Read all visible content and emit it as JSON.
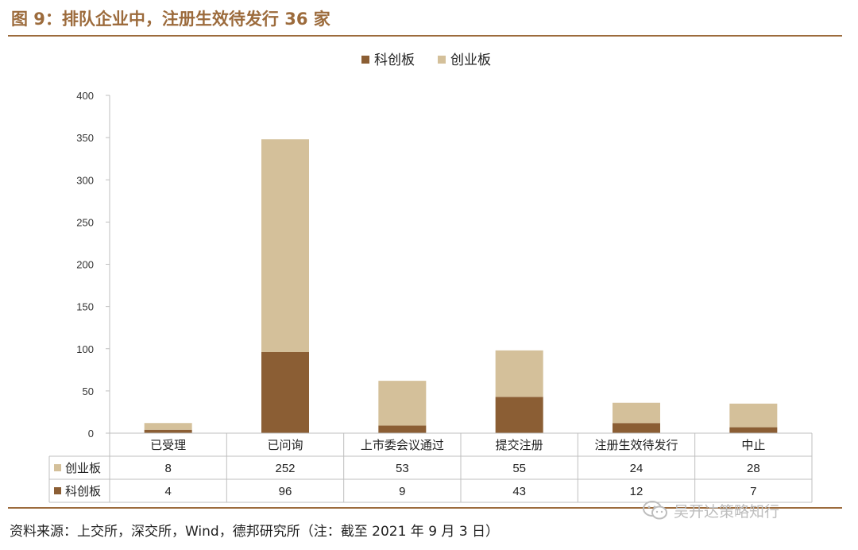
{
  "header": {
    "title": "图 9：排队企业中，注册生效待发行 36 家"
  },
  "footer": {
    "source": "资料来源：上交所，深交所，Wind，德邦研究所（注：截至 2021 年 9 月 3 日）",
    "watermark": "吴开达策略知行"
  },
  "colors": {
    "kechuang": "#8b5e34",
    "chuangye": "#d4c09a",
    "accent": "#9c6b3c"
  },
  "chart_data": {
    "type": "bar",
    "stacked": true,
    "categories": [
      "已受理",
      "已问询",
      "上市委会议通过",
      "提交注册",
      "注册生效待发行",
      "中止"
    ],
    "series": [
      {
        "name": "科创板",
        "values": [
          4,
          96,
          9,
          43,
          12,
          7
        ],
        "color": "#8b5e34"
      },
      {
        "name": "创业板",
        "values": [
          8,
          252,
          53,
          55,
          24,
          28
        ],
        "color": "#d4c09a"
      }
    ],
    "ylim": [
      0,
      400
    ],
    "yticks": [
      0,
      50,
      100,
      150,
      200,
      250,
      300,
      350,
      400
    ],
    "legend": "top-center",
    "table_rows": [
      "创业板",
      "科创板"
    ],
    "grid": false
  }
}
